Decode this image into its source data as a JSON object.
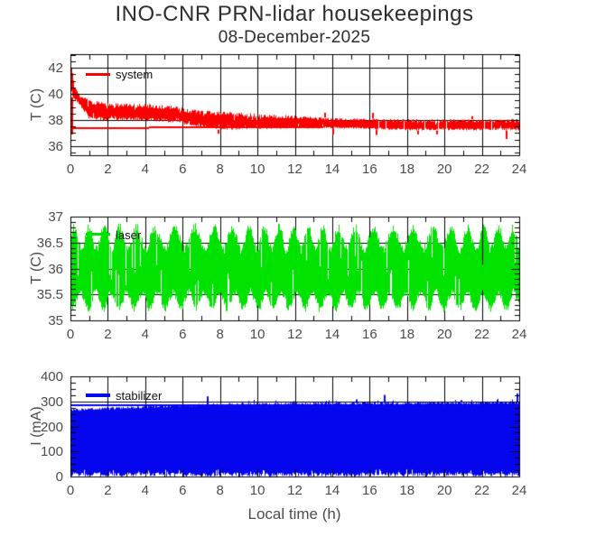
{
  "header": {
    "title": "INO-CNR PRN-lidar housekeepings",
    "subtitle": "08-December-2025"
  },
  "xlabel": "Local time (h)",
  "colors": {
    "system": "#fa0000",
    "laser": "#00e300",
    "stabilizer": "#0606ee",
    "axis": "#000000",
    "tick_text": "#4c4c4c"
  },
  "chart_data": [
    {
      "type": "line",
      "name": "system-temperature",
      "legend": "system",
      "color": "#fa0000",
      "ylabel": "T (C)",
      "ylim": [
        35.3,
        43.05
      ],
      "ytick_values": [
        36,
        38,
        40,
        42
      ],
      "yticks": [
        "36",
        "38",
        "40",
        "42"
      ],
      "yminor_step": 0.5,
      "xlim": [
        0,
        24
      ],
      "xtick_values": [
        0,
        2,
        4,
        6,
        8,
        10,
        12,
        14,
        16,
        18,
        20,
        22,
        24
      ],
      "xticks": [
        "0",
        "2",
        "4",
        "6",
        "8",
        "10",
        "12",
        "14",
        "16",
        "18",
        "20",
        "22",
        "24"
      ],
      "xminor_step": 1,
      "band_keyframes": [
        [
          0,
          40.1,
          42.45
        ],
        [
          0.2,
          39.5,
          40.7
        ],
        [
          0.5,
          39.1,
          40.0
        ],
        [
          1,
          38.0,
          39.6
        ],
        [
          2,
          37.95,
          39.3
        ],
        [
          4,
          37.95,
          39.25
        ],
        [
          5.5,
          37.8,
          39.1
        ],
        [
          6.5,
          37.5,
          38.8
        ],
        [
          8,
          37.25,
          38.65
        ],
        [
          10,
          37.3,
          38.5
        ],
        [
          12,
          37.35,
          38.35
        ],
        [
          14,
          37.35,
          38.15
        ],
        [
          16,
          37.3,
          38.1
        ],
        [
          18,
          37.2,
          38.1
        ],
        [
          21,
          37.2,
          38.05
        ],
        [
          24,
          37.2,
          38.1
        ]
      ],
      "baseline_segments": [
        [
          0.05,
          4.2,
          37.45
        ],
        [
          4.2,
          13.5,
          37.52
        ]
      ],
      "spikes": [
        [
          0.12,
          36.9
        ],
        [
          7.9,
          36.95
        ],
        [
          13.6,
          38.55
        ],
        [
          14.05,
          36.9
        ],
        [
          16.2,
          38.55
        ],
        [
          16.35,
          36.85
        ],
        [
          18.6,
          36.9
        ],
        [
          19.6,
          36.9
        ],
        [
          21.5,
          38.3
        ],
        [
          23.3,
          36.55
        ]
      ]
    },
    {
      "type": "line",
      "name": "laser-temperature",
      "legend": "laser",
      "color": "#00e300",
      "ylabel": "T (C)",
      "ylim": [
        35,
        37
      ],
      "ytick_values": [
        35,
        35.5,
        36,
        36.5,
        37
      ],
      "yticks": [
        "35",
        "35.5",
        "36",
        "36.5",
        "37"
      ],
      "yminor_step": 0.1,
      "xlim": [
        0,
        24
      ],
      "xtick_values": [
        0,
        2,
        4,
        6,
        8,
        10,
        12,
        14,
        16,
        18,
        20,
        22,
        24
      ],
      "xticks": [
        "0",
        "2",
        "4",
        "6",
        "8",
        "10",
        "12",
        "14",
        "16",
        "18",
        "20",
        "22",
        "24"
      ],
      "xminor_step": 1,
      "band": {
        "lo_min": 35.15,
        "lo_max": 35.62,
        "hi_min": 36.28,
        "hi_max": 36.88,
        "modulation_period_h": 0.9
      }
    },
    {
      "type": "line",
      "name": "stabilizer-current",
      "legend": "stabilizer",
      "color": "#0606ee",
      "ylabel": "I (mA)",
      "ylim": [
        0,
        400
      ],
      "ytick_values": [
        0,
        100,
        200,
        300,
        400
      ],
      "yticks": [
        "0",
        "100",
        "200",
        "300",
        "400"
      ],
      "yminor_step": 25,
      "xlim": [
        0,
        24
      ],
      "xtick_values": [
        0,
        2,
        4,
        6,
        8,
        10,
        12,
        14,
        16,
        18,
        20,
        22,
        24
      ],
      "xticks": [
        "0",
        "2",
        "4",
        "6",
        "8",
        "10",
        "12",
        "14",
        "16",
        "18",
        "20",
        "22",
        "24"
      ],
      "xminor_step": 1,
      "band_keyframes": [
        [
          0,
          8,
          265
        ],
        [
          2,
          8,
          272
        ],
        [
          4,
          8,
          278
        ],
        [
          6,
          8,
          283
        ],
        [
          8,
          8,
          288
        ],
        [
          12,
          8,
          291
        ],
        [
          18,
          8,
          293
        ],
        [
          24,
          8,
          295
        ]
      ],
      "baseline_segments": [
        [
          0,
          24,
          290
        ]
      ],
      "spikes": [
        [
          7.35,
          320
        ],
        [
          15.3,
          308
        ],
        [
          16.8,
          326
        ],
        [
          20.9,
          305
        ],
        [
          23.9,
          332
        ]
      ]
    }
  ]
}
